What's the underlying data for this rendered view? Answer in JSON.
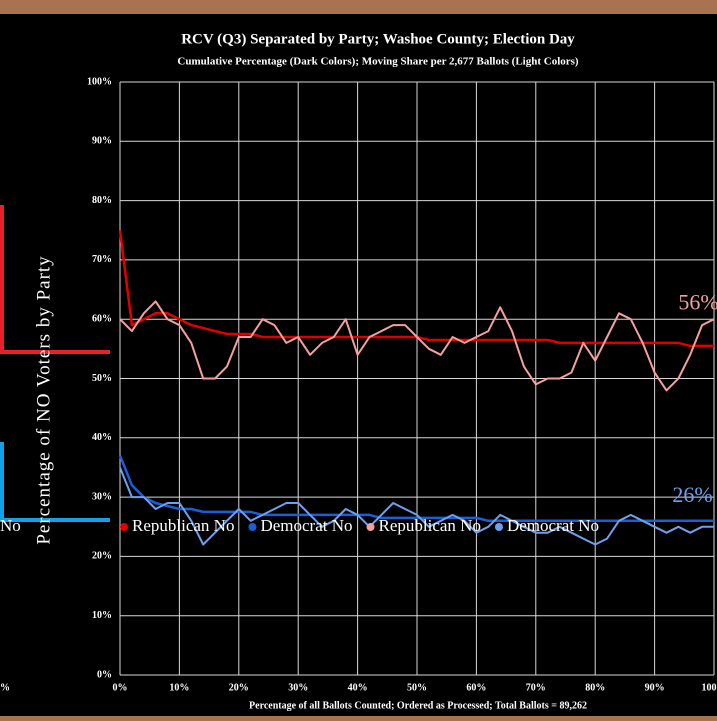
{
  "chart_data": {
    "type": "line",
    "title": "RCV (Q3) Separated by Party; Washoe County; Election Day",
    "subtitle": "Cumulative Percentage (Dark Colors); Moving Share per 2,677 Ballots (Light Colors)",
    "x_label": "Percentage of all Ballots Counted; Ordered as Processed; Total Ballots  =  89,262",
    "y_label": "Percentage of NO Voters by Party",
    "x": [
      0,
      2,
      4,
      6,
      8,
      10,
      12,
      14,
      16,
      18,
      20,
      22,
      24,
      26,
      28,
      30,
      32,
      34,
      36,
      38,
      40,
      42,
      44,
      46,
      48,
      50,
      52,
      54,
      56,
      58,
      60,
      62,
      64,
      66,
      68,
      70,
      72,
      74,
      76,
      78,
      80,
      82,
      84,
      86,
      88,
      90,
      92,
      94,
      96,
      98,
      100
    ],
    "series": [
      {
        "name": "Republican No",
        "color": "#e00000",
        "width": 2.5,
        "values": [
          75,
          59,
          60,
          61,
          61,
          60,
          59,
          58.5,
          58,
          57.5,
          57.5,
          57.5,
          57,
          57,
          57,
          57,
          57,
          57,
          57,
          57,
          57,
          57,
          57,
          57,
          57,
          57,
          56.5,
          56.5,
          56.5,
          56.5,
          56.5,
          56.5,
          56.5,
          56.5,
          56.5,
          56.5,
          56.5,
          56,
          56,
          56,
          56,
          56,
          56,
          56,
          56,
          56,
          56,
          56,
          55.5,
          55.5,
          55.5
        ]
      },
      {
        "name": "Democrat No",
        "color": "#1a5fd6",
        "width": 2.5,
        "values": [
          37,
          32,
          30,
          29,
          28.5,
          28,
          28,
          27.5,
          27.5,
          27.5,
          27.5,
          27.5,
          27,
          27,
          27,
          27,
          27,
          27,
          27,
          27,
          27,
          27,
          26.5,
          26.5,
          26.5,
          26.5,
          26.5,
          26.5,
          26.5,
          26.5,
          26.5,
          26,
          26,
          26,
          26,
          26,
          26,
          26,
          26,
          26,
          26,
          26,
          26,
          26,
          26,
          26,
          26,
          26,
          26,
          26,
          26
        ]
      },
      {
        "name": "Republican No",
        "color": "#f4a0a0",
        "width": 2,
        "values": [
          60,
          58,
          61,
          63,
          60,
          59,
          56,
          50,
          50,
          52,
          57,
          57,
          60,
          59,
          56,
          57,
          54,
          56,
          57,
          60,
          54,
          57,
          58,
          59,
          59,
          57,
          55,
          54,
          57,
          56,
          57,
          58,
          62,
          58,
          52,
          49,
          50,
          50,
          51,
          56,
          53,
          57,
          61,
          60,
          56,
          51,
          48,
          50,
          54,
          59,
          60
        ]
      },
      {
        "name": "Democrat No",
        "color": "#6fa0ee",
        "width": 2,
        "values": [
          35,
          30,
          30,
          28,
          29,
          29,
          26,
          22,
          24,
          26,
          28,
          26,
          27,
          28,
          29,
          29,
          27,
          25,
          26,
          28,
          27,
          25,
          27,
          29,
          28,
          27,
          25,
          26,
          27,
          26,
          24,
          25,
          27,
          26,
          25,
          24,
          24,
          25,
          24,
          23,
          22,
          23,
          26,
          27,
          26,
          25,
          24,
          25,
          24,
          25,
          25
        ]
      }
    ],
    "xlim": [
      0,
      100
    ],
    "xticks": [
      {
        "value": 0,
        "label": "0%"
      },
      {
        "value": 10,
        "label": "10%"
      },
      {
        "value": 20,
        "label": "20%"
      },
      {
        "value": 30,
        "label": "30%"
      },
      {
        "value": 40,
        "label": "40%"
      },
      {
        "value": 50,
        "label": "50%"
      },
      {
        "value": 60,
        "label": "60%"
      },
      {
        "value": 70,
        "label": "70%"
      },
      {
        "value": 80,
        "label": "80%"
      },
      {
        "value": 90,
        "label": "90%"
      },
      {
        "value": 100,
        "label": "100%"
      }
    ],
    "ylim": [
      0,
      100
    ],
    "yticks": [
      {
        "value": 0,
        "label": "0%"
      },
      {
        "value": 10,
        "label": "10%"
      },
      {
        "value": 20,
        "label": "20%"
      },
      {
        "value": 30,
        "label": "30%"
      },
      {
        "value": 40,
        "label": "40%"
      },
      {
        "value": 50,
        "label": "50%"
      },
      {
        "value": 60,
        "label": "60%"
      },
      {
        "value": 70,
        "label": "70%"
      },
      {
        "value": 80,
        "label": "80%"
      },
      {
        "value": 90,
        "label": "90%"
      },
      {
        "value": 100,
        "label": "100%"
      }
    ],
    "grid": true,
    "annotations": [
      {
        "text": "56%",
        "x": 94,
        "y": 62.5,
        "color": "#f4a0a0"
      },
      {
        "text": "26%",
        "x": 93,
        "y": 30,
        "color": "#6fa0ee"
      }
    ]
  },
  "cropped_text": [
    "No",
    "%"
  ]
}
